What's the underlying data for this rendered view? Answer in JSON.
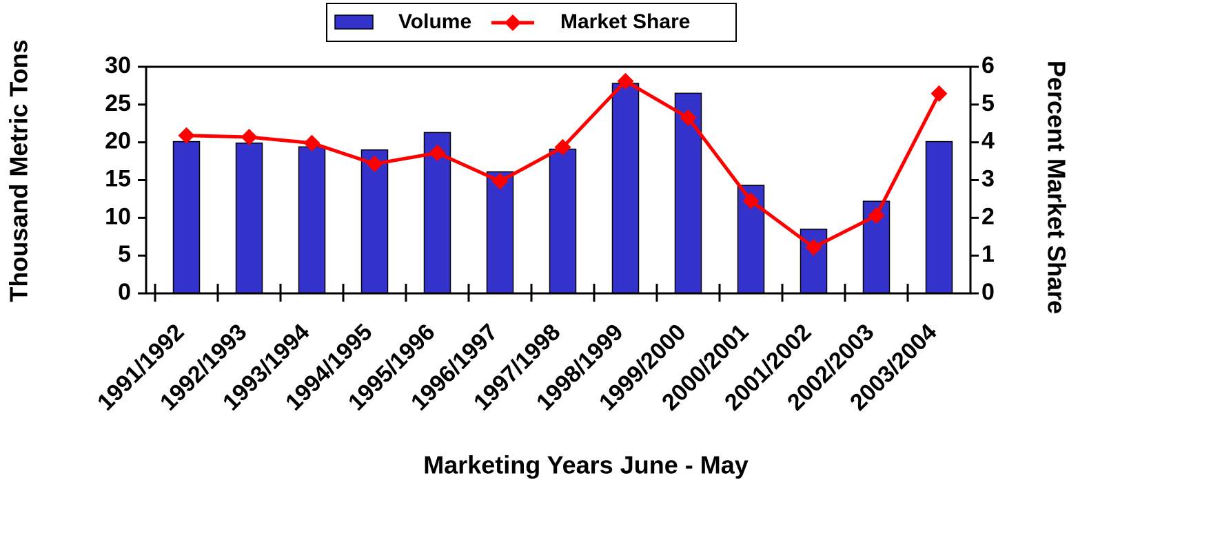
{
  "chart_data": {
    "type": "bar",
    "x_label": "Marketing Years  June - May",
    "y_label": "Thousand Metric Tons",
    "y2_label": "Percent Market Share",
    "categories": [
      "1991/1992",
      "1992/1993",
      "1993/1994",
      "1994/1995",
      "1995/1996",
      "1996/1997",
      "1997/1998",
      "1998/1999",
      "1999/2000",
      "2000/2001",
      "2001/2002",
      "2002/2003",
      "2003/2004"
    ],
    "series": [
      {
        "name": "Volume",
        "type": "bar",
        "color": "#3333cc",
        "values": [
          20.1,
          19.9,
          19.4,
          19.0,
          21.3,
          16.1,
          19.1,
          27.8,
          26.5,
          14.3,
          8.5,
          12.2,
          20.1
        ]
      },
      {
        "name": "Market Share",
        "type": "line",
        "axis": "y2",
        "color": "#ff0000",
        "values": [
          4.18,
          4.14,
          3.98,
          3.43,
          3.72,
          2.97,
          3.87,
          5.62,
          4.65,
          2.45,
          1.22,
          2.06,
          5.29
        ]
      }
    ],
    "ylim": [
      0,
      30
    ],
    "yticks": [
      0,
      5,
      10,
      15,
      20,
      25,
      30
    ],
    "y2lim": [
      0,
      6
    ],
    "y2ticks": [
      0,
      1,
      2,
      3,
      4,
      5,
      6
    ],
    "legend": "top"
  }
}
